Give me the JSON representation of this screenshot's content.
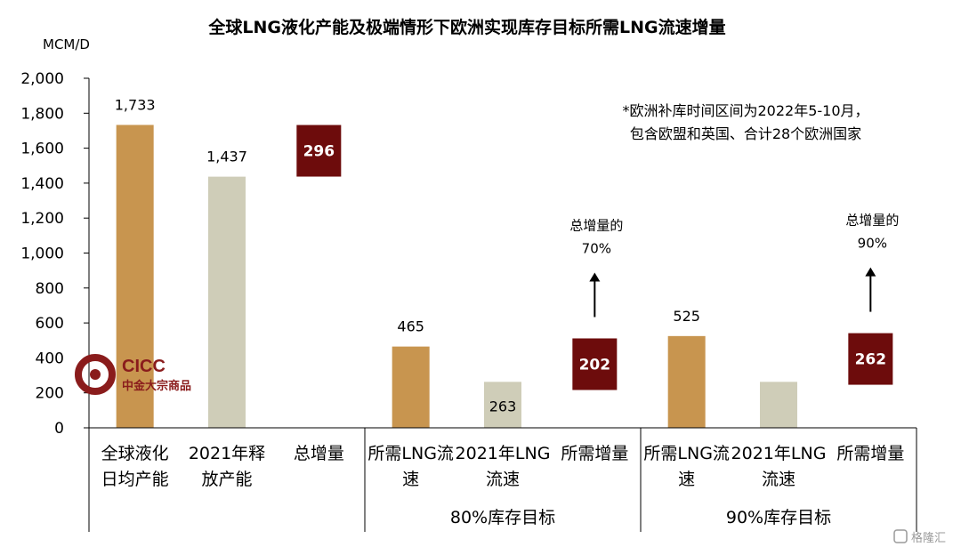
{
  "chart_data": {
    "type": "bar",
    "title": "全球LNG液化产能及极端情形下欧洲实现库存目标所需LNG流速增量",
    "ylabel": "MCM/D",
    "ylim": [
      0,
      2000
    ],
    "yticks": [
      "2,000",
      "1,800",
      "1,600",
      "1,400",
      "1,200",
      "1,000",
      "800",
      "600",
      "400",
      "200",
      "0"
    ],
    "groups": [
      {
        "label": "",
        "bars": [
          {
            "category": [
              "全球液化",
              "日均产能"
            ],
            "value": 1733,
            "label": "1,733",
            "style": "brown"
          },
          {
            "category": [
              "2021年释",
              "放产能"
            ],
            "value": 1437,
            "label": "1,437",
            "style": "gray"
          },
          {
            "category": [
              "总增量"
            ],
            "value": 296,
            "label": "296",
            "style": "box",
            "box_center": 1585
          }
        ]
      },
      {
        "label": "80%库存目标",
        "bars": [
          {
            "category": [
              "所需LNG流",
              "速"
            ],
            "value": 465,
            "label": "465",
            "style": "brown"
          },
          {
            "category": [
              "2021年LNG",
              "流速"
            ],
            "value": 263,
            "label": "263",
            "style": "gray"
          },
          {
            "category": [
              "所需增量"
            ],
            "value": 202,
            "label": "202",
            "style": "box",
            "box_center": 364
          }
        ],
        "annotation": [
          "总增量的",
          "70%"
        ]
      },
      {
        "label": "90%库存目标",
        "bars": [
          {
            "category": [
              "所需LNG流",
              "速"
            ],
            "value": 525,
            "label": "525",
            "style": "brown"
          },
          {
            "category": [
              "2021年LNG",
              "流速"
            ],
            "value": 263,
            "label": "",
            "style": "gray"
          },
          {
            "category": [
              "所需增量"
            ],
            "value": 262,
            "label": "262",
            "style": "box",
            "box_center": 394
          }
        ],
        "annotation": [
          "总增量的",
          "90%"
        ]
      }
    ],
    "note": [
      "*欧洲补库时间区间为2022年5-10月，",
      "包含欧盟和英国、合计28个欧洲国家"
    ],
    "grid": false
  },
  "logo": {
    "name": "CICC",
    "subtitle": "中金大宗商品"
  },
  "watermark": "格隆汇",
  "colors": {
    "brown": "#c8954f",
    "gray": "#cfcdb8",
    "box": "#6d0c0c",
    "logo": "#8a1c1c"
  }
}
